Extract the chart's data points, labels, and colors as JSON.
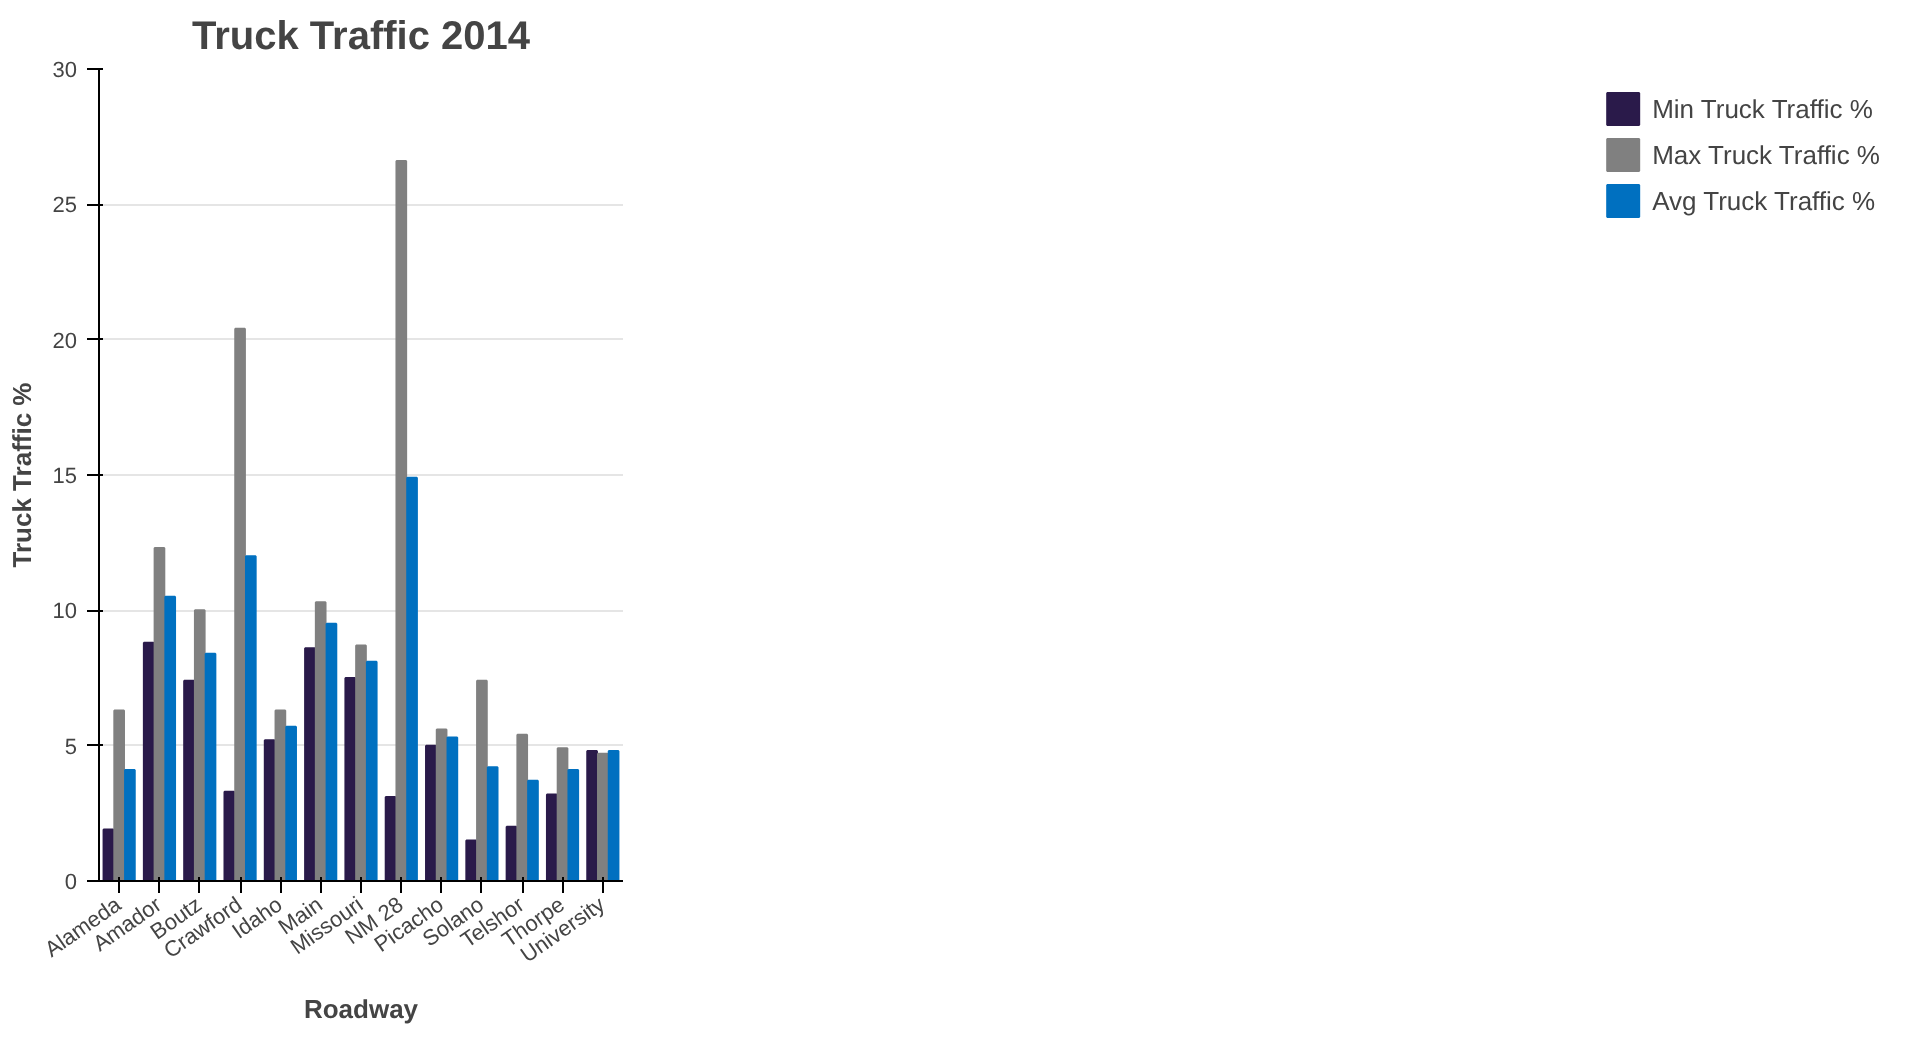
{
  "chart_data": {
    "type": "bar",
    "title": "Truck Traffic 2014",
    "xlabel": "Roadway",
    "ylabel": "Truck Traffic %",
    "categories": [
      "Alameda",
      "Amador",
      "Boutz",
      "Crawford",
      "Idaho",
      "Main",
      "Missouri",
      "NM 28",
      "Picacho",
      "Solano",
      "Telshor",
      "Thorpe",
      "University"
    ],
    "series": [
      {
        "name": "Min Truck Traffic %",
        "color": "#2a1a4a",
        "values": [
          1.9,
          8.8,
          7.4,
          3.3,
          5.2,
          8.6,
          7.5,
          3.1,
          5.0,
          1.5,
          2.0,
          3.2,
          4.8
        ]
      },
      {
        "name": "Max Truck Traffic %",
        "color": "#808080",
        "values": [
          6.3,
          12.3,
          10.0,
          20.4,
          6.3,
          10.3,
          8.7,
          26.6,
          5.6,
          7.4,
          5.4,
          4.9,
          4.7
        ]
      },
      {
        "name": "Avg Truck Traffic %",
        "color": "#0070c0",
        "values": [
          4.1,
          10.5,
          8.4,
          12.0,
          5.7,
          9.5,
          8.1,
          14.9,
          5.3,
          4.2,
          3.7,
          4.1,
          4.8
        ]
      }
    ],
    "ylim": [
      0,
      30
    ],
    "yticks": [
      0,
      5,
      10,
      15,
      20,
      25,
      30
    ],
    "grid": "y",
    "legend": "right"
  }
}
